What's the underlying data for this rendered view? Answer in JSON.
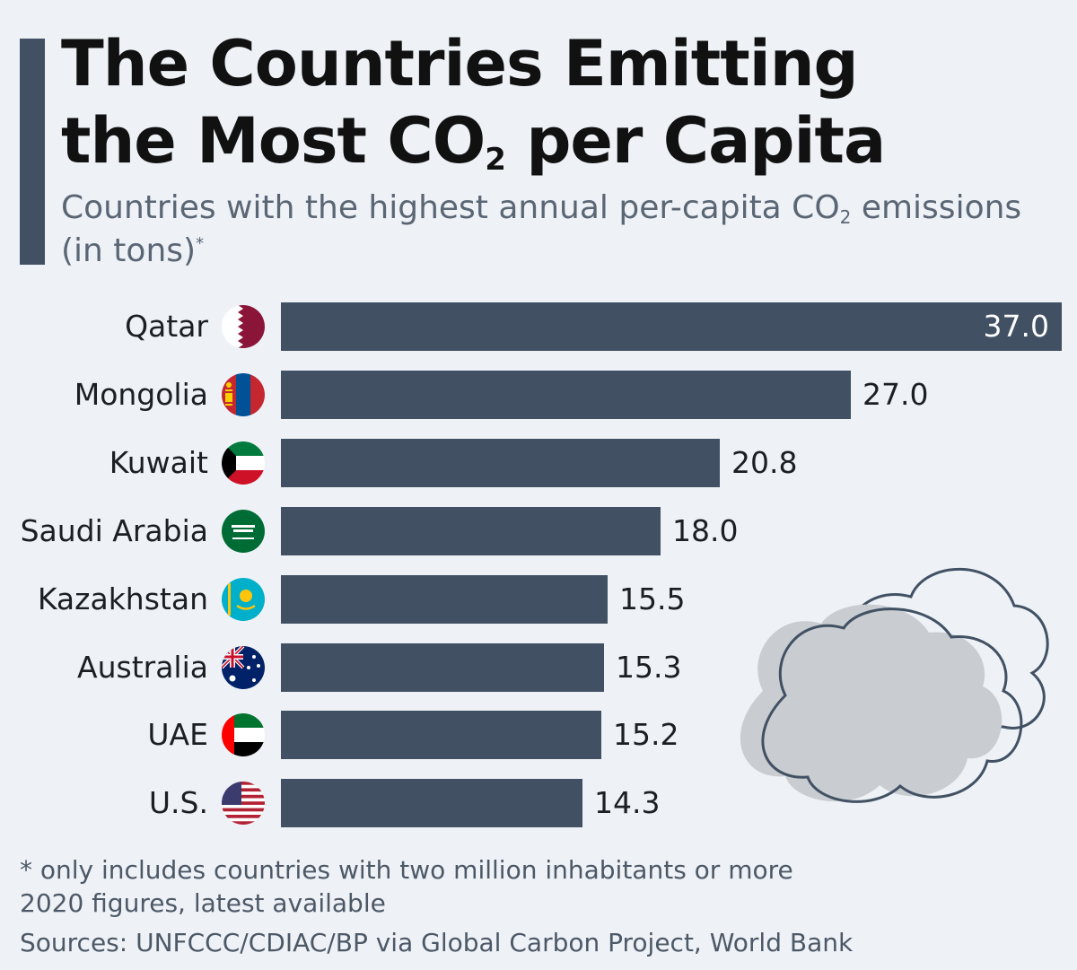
{
  "header": {
    "title_line1": "The Countries Emitting",
    "title_line2_pre": "the Most CO",
    "title_line2_sub": "2",
    "title_line2_post": " per Capita",
    "subtitle_pre": "Countries with the highest annual per-capita CO",
    "subtitle_sub": "2",
    "subtitle_post": " emissions (in tons)",
    "subtitle_mark": "*"
  },
  "chart_data": {
    "type": "bar",
    "orientation": "horizontal",
    "categories": [
      "Qatar",
      "Mongolia",
      "Kuwait",
      "Saudi Arabia",
      "Kazakhstan",
      "Australia",
      "UAE",
      "U.S."
    ],
    "values": [
      37.0,
      27.0,
      20.8,
      18.0,
      15.5,
      15.3,
      15.2,
      14.3
    ],
    "value_labels": [
      "37.0",
      "27.0",
      "20.8",
      "18.0",
      "15.5",
      "15.3",
      "15.2",
      "14.3"
    ],
    "flags": [
      "qatar-flag-icon",
      "mongolia-flag-icon",
      "kuwait-flag-icon",
      "saudi-arabia-flag-icon",
      "kazakhstan-flag-icon",
      "australia-flag-icon",
      "uae-flag-icon",
      "us-flag-icon"
    ],
    "xlim": [
      0,
      37
    ],
    "grid": false,
    "legend": "none",
    "bar_color": "#415163"
  },
  "footer": {
    "note1": "* only includes countries with two million inhabitants or more",
    "note2": "2020 figures, latest available",
    "sources": "Sources: UNFCCC/CDIAC/BP via Global Carbon Project, World Bank"
  },
  "colors": {
    "background": "#eef2f7",
    "accent": "#415163",
    "cloud": "#c9cdd2"
  },
  "decoration": {
    "icon": "cloud-icon"
  }
}
